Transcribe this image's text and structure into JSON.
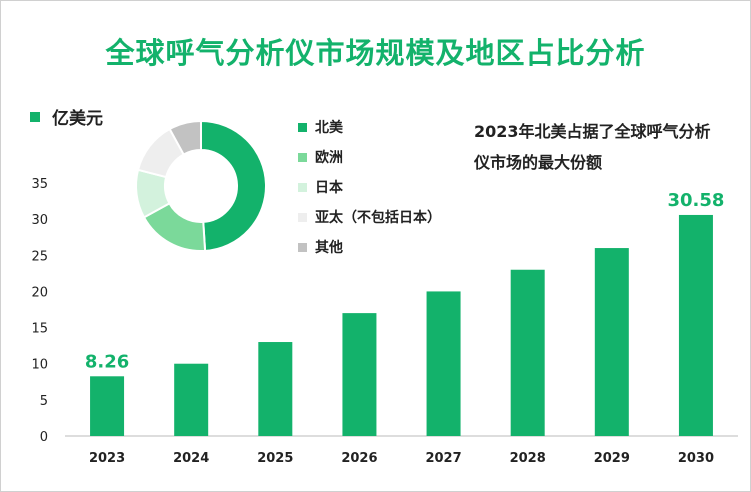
{
  "title": "全球呼气分析仪市场规模及地区占比分析",
  "unit_label": "亿美元",
  "note": "2023年北美占据了全球呼气分析仪市场的最大份额",
  "colors": {
    "accent": "#13b26b",
    "bar": "#13b26b"
  },
  "legend": [
    {
      "label": "北美",
      "color": "#13b26b"
    },
    {
      "label": "欧洲",
      "color": "#7bd99a"
    },
    {
      "label": "日本",
      "color": "#d3f2dd"
    },
    {
      "label": "亚太（不包括日本）",
      "color": "#eeeeee"
    },
    {
      "label": "其他",
      "color": "#c2c2c2"
    }
  ],
  "chart_data": [
    {
      "type": "bar",
      "categories": [
        "2023",
        "2024",
        "2025",
        "2026",
        "2027",
        "2028",
        "2029",
        "2030"
      ],
      "values": [
        8.26,
        10,
        13,
        17,
        20,
        23,
        26,
        30.58
      ],
      "data_labels": [
        "8.26",
        "",
        "",
        "",
        "",
        "",
        "",
        "30.58"
      ],
      "ylabel": "亿美元",
      "ylim": [
        0,
        35
      ],
      "yticks": [
        0,
        5,
        10,
        15,
        20,
        25,
        30,
        35
      ],
      "grid": false
    },
    {
      "type": "pie",
      "style": "donut",
      "labels": [
        "北美",
        "欧洲",
        "日本",
        "亚太（不包括日本）",
        "其他"
      ],
      "values": [
        49,
        18,
        12,
        13,
        8
      ]
    }
  ]
}
